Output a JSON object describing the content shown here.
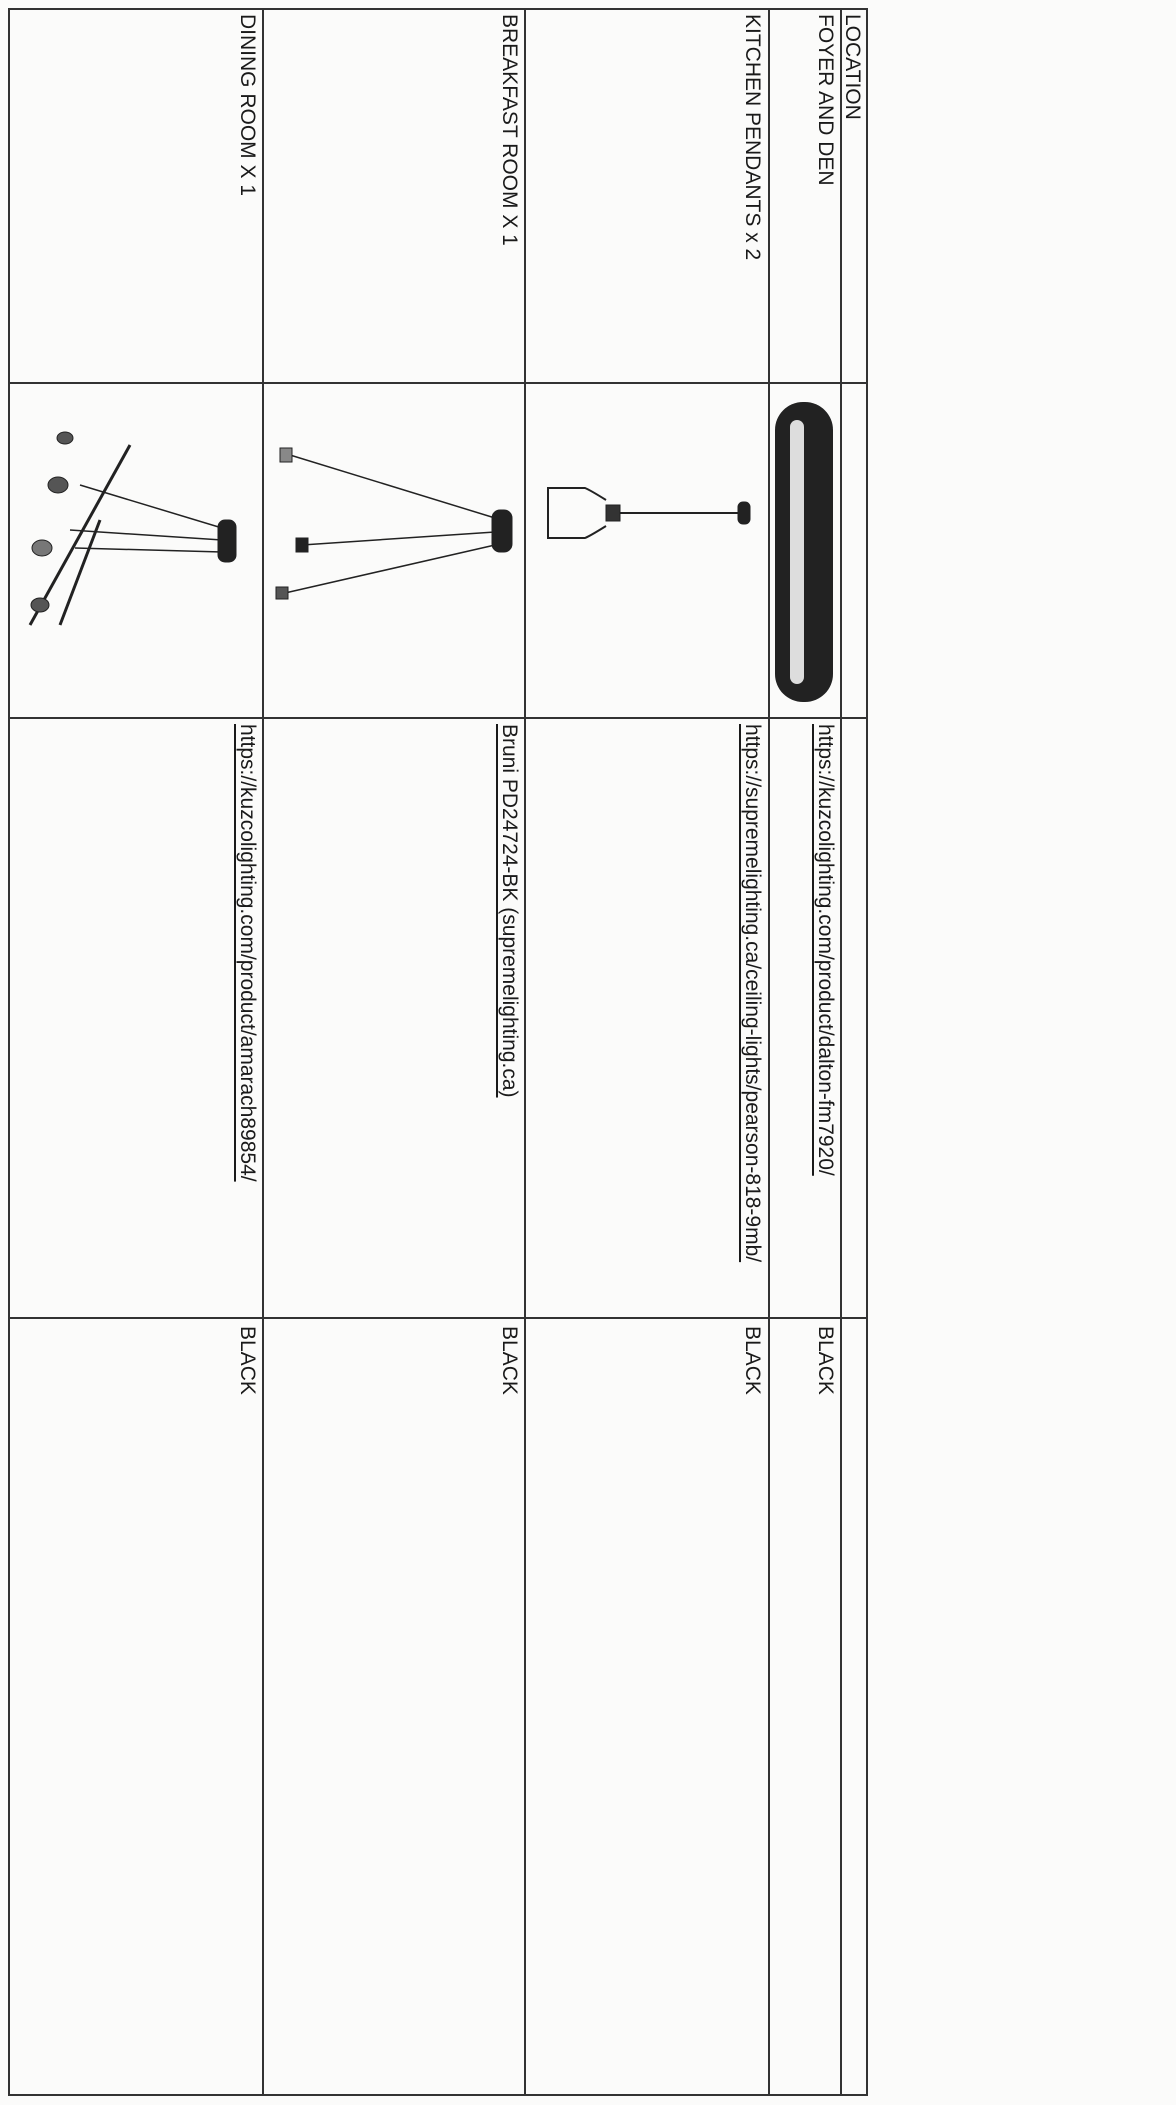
{
  "header": {
    "location": "LOCATION"
  },
  "rows": [
    {
      "location": "FOYER AND DEN",
      "link": "https://kuzcolighting.com/product/dalton-fm7920/",
      "color": "BLACK"
    },
    {
      "location": "KITCHEN PENDANTS x 2",
      "link": "https://supremelighting.ca/ceiling-lights/pearson-818-9mb/",
      "color": "BLACK"
    },
    {
      "location": "BREAKFAST ROOM X 1",
      "link": "Bruni PD24724-BK (supremelighting.ca)",
      "color": "BLACK"
    },
    {
      "location": "DINING ROOM X 1",
      "link": "https://kuzcolighting.com/product/amarach89854/",
      "color": "BLACK"
    }
  ]
}
